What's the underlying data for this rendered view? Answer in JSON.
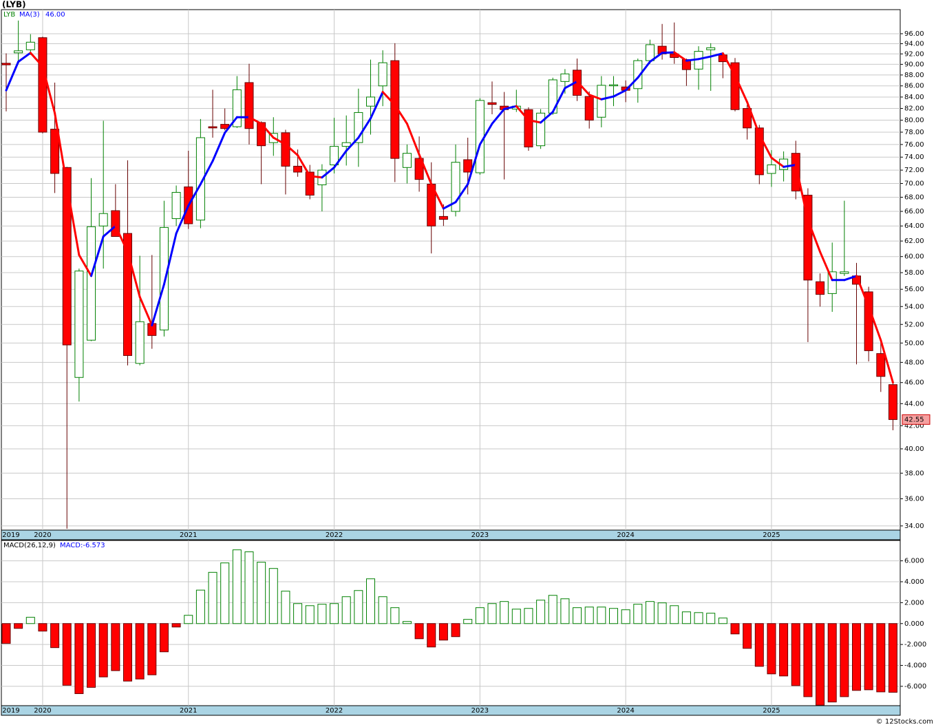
{
  "chart_data": [
    {
      "type": "candlestick",
      "title": "(LYB)",
      "log_scale": true,
      "grid": true,
      "categories": [
        "2019",
        null,
        null,
        "2020",
        null,
        null,
        null,
        null,
        null,
        null,
        null,
        null,
        null,
        null,
        null,
        "2021",
        null,
        null,
        null,
        null,
        null,
        null,
        null,
        null,
        null,
        null,
        null,
        "2022",
        null,
        null,
        null,
        null,
        null,
        null,
        null,
        null,
        null,
        null,
        null,
        "2023",
        null,
        null,
        null,
        null,
        null,
        null,
        null,
        null,
        null,
        null,
        null,
        "2024",
        null,
        null,
        null,
        null,
        null,
        null,
        null,
        null,
        null,
        null,
        null,
        "2025",
        null,
        null,
        null,
        null,
        null,
        null,
        null,
        null,
        null,
        null
      ],
      "series": [
        {
          "name": "LYB",
          "up_color": "#008000",
          "down_color": "#ff0000",
          "last_label": "42.55",
          "open": [
            90.2,
            92.2,
            92.8,
            95.2,
            78.5,
            72.4,
            46.5,
            50.3,
            64.0,
            66.1,
            63.0,
            47.9,
            52.1,
            51.4,
            65.0,
            69.5,
            64.8,
            78.9,
            79.3,
            78.9,
            86.6,
            79.6,
            76.3,
            77.9,
            72.6,
            71.7,
            69.8,
            72.8,
            75.7,
            76.3,
            82.4,
            86.0,
            90.7,
            72.4,
            73.8,
            69.9,
            65.3,
            66.0,
            73.6,
            71.6,
            83.0,
            82.4,
            81.9,
            81.8,
            75.8,
            81.2,
            86.8,
            88.9,
            84.1,
            80.5,
            86.1,
            85.8,
            85.5,
            90.7,
            93.5,
            92.0,
            90.9,
            89.1,
            92.8,
            91.8,
            90.3,
            82.0,
            78.7,
            71.5,
            72.1,
            74.6,
            68.3,
            56.9,
            55.5,
            57.9,
            57.6,
            55.7,
            48.9,
            45.8
          ],
          "high": [
            92.1,
            98.7,
            95.9,
            95.4,
            86.6,
            72.5,
            58.5,
            70.8,
            79.9,
            69.9,
            73.5,
            60.1,
            60.2,
            67.5,
            69.7,
            75.0,
            80.2,
            85.3,
            82.0,
            87.8,
            90.1,
            79.8,
            80.5,
            78.4,
            75.2,
            72.8,
            72.9,
            80.4,
            80.8,
            85.5,
            90.9,
            92.7,
            94.1,
            76.0,
            77.3,
            73.2,
            67.0,
            76.0,
            77.1,
            83.8,
            86.8,
            84.9,
            85.3,
            82.2,
            81.9,
            87.5,
            89.1,
            91.1,
            85.0,
            87.8,
            87.8,
            87.0,
            91.1,
            94.8,
            98.0,
            98.3,
            91.1,
            93.5,
            94.1,
            92.2,
            91.2,
            82.6,
            79.2,
            75.1,
            74.9,
            76.6,
            69.3,
            57.9,
            61.8,
            67.5,
            59.2,
            56.3,
            50.1,
            45.9
          ],
          "low": [
            81.5,
            90.0,
            91.8,
            77.8,
            68.6,
            33.8,
            44.2,
            50.2,
            58.5,
            62.6,
            47.7,
            47.7,
            49.4,
            50.7,
            64.0,
            63.6,
            63.7,
            77.1,
            78.3,
            78.7,
            76.0,
            69.9,
            74.2,
            68.4,
            71.0,
            67.7,
            66.0,
            71.5,
            72.7,
            72.5,
            77.6,
            82.4,
            70.2,
            70.0,
            68.8,
            60.4,
            64.0,
            65.3,
            68.4,
            71.3,
            81.0,
            70.6,
            81.4,
            75.0,
            75.3,
            80.9,
            84.6,
            83.3,
            78.6,
            78.8,
            82.4,
            83.1,
            83.0,
            90.1,
            90.9,
            90.1,
            86.0,
            85.3,
            85.1,
            87.4,
            81.5,
            76.8,
            69.9,
            69.5,
            70.3,
            67.7,
            50.1,
            54.0,
            53.4,
            57.6,
            47.8,
            48.1,
            45.1,
            41.6
          ],
          "close": [
            89.9,
            92.6,
            94.3,
            78.0,
            71.5,
            49.8,
            58.2,
            63.9,
            65.7,
            62.6,
            48.7,
            52.3,
            50.8,
            63.8,
            68.7,
            64.3,
            77.1,
            78.7,
            78.6,
            85.3,
            78.6,
            75.8,
            77.8,
            72.6,
            71.7,
            68.3,
            72.0,
            75.7,
            76.3,
            81.3,
            84.0,
            90.3,
            73.8,
            74.6,
            70.6,
            64.0,
            64.9,
            73.2,
            71.7,
            83.4,
            82.7,
            81.8,
            82.4,
            75.6,
            81.2,
            87.1,
            88.2,
            84.3,
            80.0,
            86.1,
            86.2,
            85.2,
            90.7,
            93.8,
            92.0,
            91.3,
            89.0,
            92.5,
            93.2,
            90.5,
            81.8,
            78.7,
            71.3,
            72.8,
            73.7,
            68.9,
            57.1,
            55.4,
            58.1,
            58.1,
            56.6,
            49.2,
            46.6,
            42.55
          ]
        },
        {
          "name": "MA(3)",
          "up_color": "#0000ff",
          "down_color": "#ff0000",
          "value_label": "46.00",
          "values": [
            85.2,
            90.5,
            92.2,
            89.6,
            81.2,
            69.7,
            60.2,
            57.6,
            62.6,
            64.0,
            60.6,
            55.1,
            51.9,
            56.6,
            63.0,
            66.8,
            69.9,
            73.4,
            77.9,
            80.5,
            80.5,
            79.4,
            77.1,
            76.0,
            74.3,
            71.1,
            70.9,
            72.4,
            75.0,
            77.1,
            80.3,
            84.9,
            82.6,
            79.4,
            74.4,
            69.9,
            66.4,
            67.3,
            69.9,
            76.0,
            79.4,
            81.9,
            82.4,
            80.0,
            79.6,
            81.4,
            85.6,
            86.8,
            84.4,
            83.6,
            84.1,
            85.2,
            87.5,
            90.5,
            92.2,
            92.3,
            90.7,
            91.0,
            91.5,
            92.1,
            87.9,
            83.1,
            77.6,
            73.9,
            72.5,
            72.8,
            64.8,
            60.6,
            57.1,
            57.1,
            57.6,
            54.0,
            50.3,
            46.0
          ]
        }
      ],
      "ylim": [
        33.7,
        101
      ],
      "yticks": [
        {
          "value": 34,
          "label": "34.00"
        },
        {
          "value": 36,
          "label": "36.00"
        },
        {
          "value": 38,
          "label": "38.00"
        },
        {
          "value": 40,
          "label": "40.00"
        },
        {
          "value": 42,
          "label": "42.00"
        },
        {
          "value": 44,
          "label": "44.00"
        },
        {
          "value": 46,
          "label": "46.00"
        },
        {
          "value": 48,
          "label": "48.00"
        },
        {
          "value": 50,
          "label": "50.00"
        },
        {
          "value": 52,
          "label": "52.00"
        },
        {
          "value": 54,
          "label": "54.00"
        },
        {
          "value": 56,
          "label": "56.00"
        },
        {
          "value": 58,
          "label": "58.00"
        },
        {
          "value": 60,
          "label": "60.00"
        },
        {
          "value": 62,
          "label": "62.00"
        },
        {
          "value": 64,
          "label": "64.00"
        },
        {
          "value": 66,
          "label": "66.00"
        },
        {
          "value": 68,
          "label": "68.00"
        },
        {
          "value": 70,
          "label": "70.00"
        },
        {
          "value": 72,
          "label": "72.00"
        },
        {
          "value": 74,
          "label": "74.00"
        },
        {
          "value": 76,
          "label": "76.00"
        },
        {
          "value": 78,
          "label": "78.00"
        },
        {
          "value": 80,
          "label": "80.00"
        },
        {
          "value": 82,
          "label": "82.00"
        },
        {
          "value": 84,
          "label": "84.00"
        },
        {
          "value": 86,
          "label": "86.00"
        },
        {
          "value": 88,
          "label": "88.00"
        },
        {
          "value": 90,
          "label": "90.00"
        },
        {
          "value": 92,
          "label": "92.00"
        },
        {
          "value": 94,
          "label": "94.00"
        },
        {
          "value": 96,
          "label": "96.00"
        }
      ]
    },
    {
      "type": "bar",
      "grid": true,
      "categories": [
        "2019",
        null,
        null,
        "2020",
        null,
        null,
        null,
        null,
        null,
        null,
        null,
        null,
        null,
        null,
        null,
        "2021",
        null,
        null,
        null,
        null,
        null,
        null,
        null,
        null,
        null,
        null,
        null,
        "2022",
        null,
        null,
        null,
        null,
        null,
        null,
        null,
        null,
        null,
        null,
        null,
        "2023",
        null,
        null,
        null,
        null,
        null,
        null,
        null,
        null,
        null,
        null,
        null,
        "2024",
        null,
        null,
        null,
        null,
        null,
        null,
        null,
        null,
        null,
        null,
        null,
        "2025",
        null,
        null,
        null,
        null,
        null,
        null,
        null,
        null,
        null,
        null
      ],
      "series": [
        {
          "name": "MACD(26,12,9)",
          "value_label": "MACD:-6.573",
          "up_color": "#008000",
          "down_color": "#ff0000",
          "values": [
            -1.9,
            -0.46,
            0.6,
            -0.72,
            -2.3,
            -5.9,
            -6.7,
            -6.1,
            -5.1,
            -4.5,
            -5.5,
            -5.3,
            -4.9,
            -2.7,
            -0.33,
            0.79,
            3.2,
            4.9,
            5.8,
            7.05,
            6.86,
            5.87,
            5.27,
            3.1,
            1.91,
            1.71,
            1.85,
            1.91,
            2.57,
            3.16,
            4.28,
            2.57,
            1.52,
            0.2,
            -1.45,
            -2.24,
            -1.58,
            -1.25,
            0.4,
            1.52,
            1.91,
            2.11,
            1.38,
            1.45,
            2.24,
            2.7,
            2.37,
            1.52,
            1.58,
            1.58,
            1.45,
            1.32,
            1.85,
            2.11,
            1.98,
            1.71,
            1.12,
            1.05,
            0.99,
            0.53,
            -0.99,
            -2.37,
            -4.09,
            -4.81,
            -5.01,
            -5.93,
            -6.99,
            -7.8,
            -7.5,
            -6.99,
            -6.39,
            -6.33,
            -6.53,
            -6.573
          ]
        }
      ],
      "ylim": [
        -7.85,
        7.95
      ],
      "yticks": [
        {
          "value": -6,
          "label": "-6.000"
        },
        {
          "value": -4,
          "label": "-4.000"
        },
        {
          "value": -2,
          "label": "-2.000"
        },
        {
          "value": 0,
          "label": "0.000"
        },
        {
          "value": 2,
          "label": "2.000"
        },
        {
          "value": 4,
          "label": "4.000"
        },
        {
          "value": 6,
          "label": "6.000"
        }
      ]
    }
  ],
  "footer": "© 12Stocks.com"
}
